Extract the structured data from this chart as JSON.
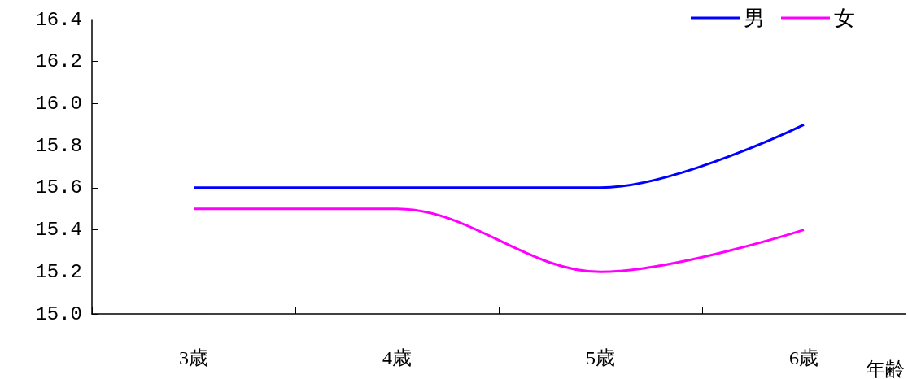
{
  "chart_data": {
    "type": "line",
    "xlabel": "年齢",
    "categories": [
      "3歳",
      "4歳",
      "5歳",
      "6歳"
    ],
    "series": [
      {
        "name": "男",
        "color": "#0000ff",
        "values": [
          15.6,
          15.6,
          15.6,
          15.9
        ]
      },
      {
        "name": "女",
        "color": "#ff00ff",
        "values": [
          15.5,
          15.5,
          15.2,
          15.4
        ]
      }
    ],
    "ylim": [
      15.0,
      16.4
    ],
    "yticks": [
      {
        "value": 15,
        "label": "15.0"
      },
      15.2,
      15.4,
      15.6,
      15.8,
      {
        "value": 16,
        "label": "16.0"
      },
      16.2,
      16.4
    ],
    "grid": false,
    "legend": "top right",
    "marker": "none",
    "line_style": "solid"
  }
}
